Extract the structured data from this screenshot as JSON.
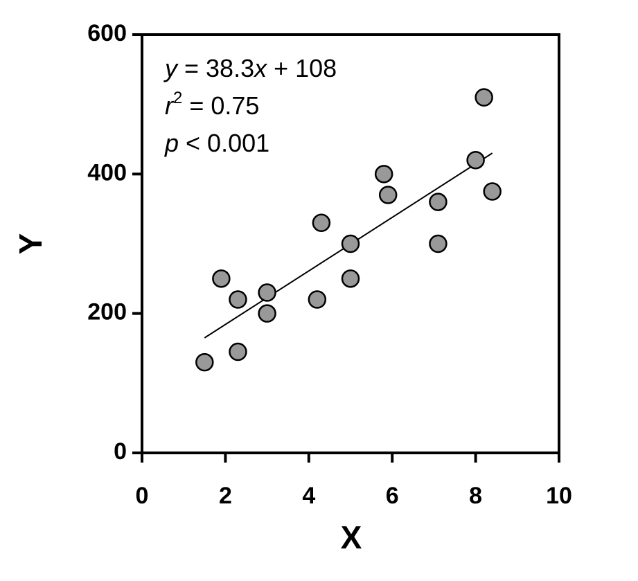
{
  "chart_data": {
    "type": "scatter",
    "x_label": "X",
    "y_label": "Y",
    "x": [
      1.5,
      1.9,
      2.3,
      2.3,
      3.0,
      3.0,
      4.2,
      4.3,
      5.0,
      5.0,
      5.8,
      5.9,
      7.1,
      7.1,
      8.0,
      8.2,
      8.4
    ],
    "values": [
      130,
      250,
      220,
      145,
      230,
      200,
      220,
      330,
      300,
      250,
      400,
      370,
      360,
      300,
      420,
      510,
      375
    ],
    "color": "#999999",
    "fit": {
      "x": [
        1.5,
        8.4
      ],
      "values": [
        165,
        430
      ]
    },
    "annotations": [
      [
        "y",
        " = 38.3",
        "x",
        " + 108"
      ],
      [
        "r",
        "2",
        " = 0.75"
      ],
      [
        "p",
        " < 0.001"
      ]
    ],
    "xlim": [
      0,
      10
    ],
    "xticks": [
      0,
      2,
      4,
      6,
      8,
      10
    ],
    "ylim": [
      0,
      600
    ],
    "yticks": [
      0,
      200,
      400,
      600
    ],
    "grid": false
  }
}
